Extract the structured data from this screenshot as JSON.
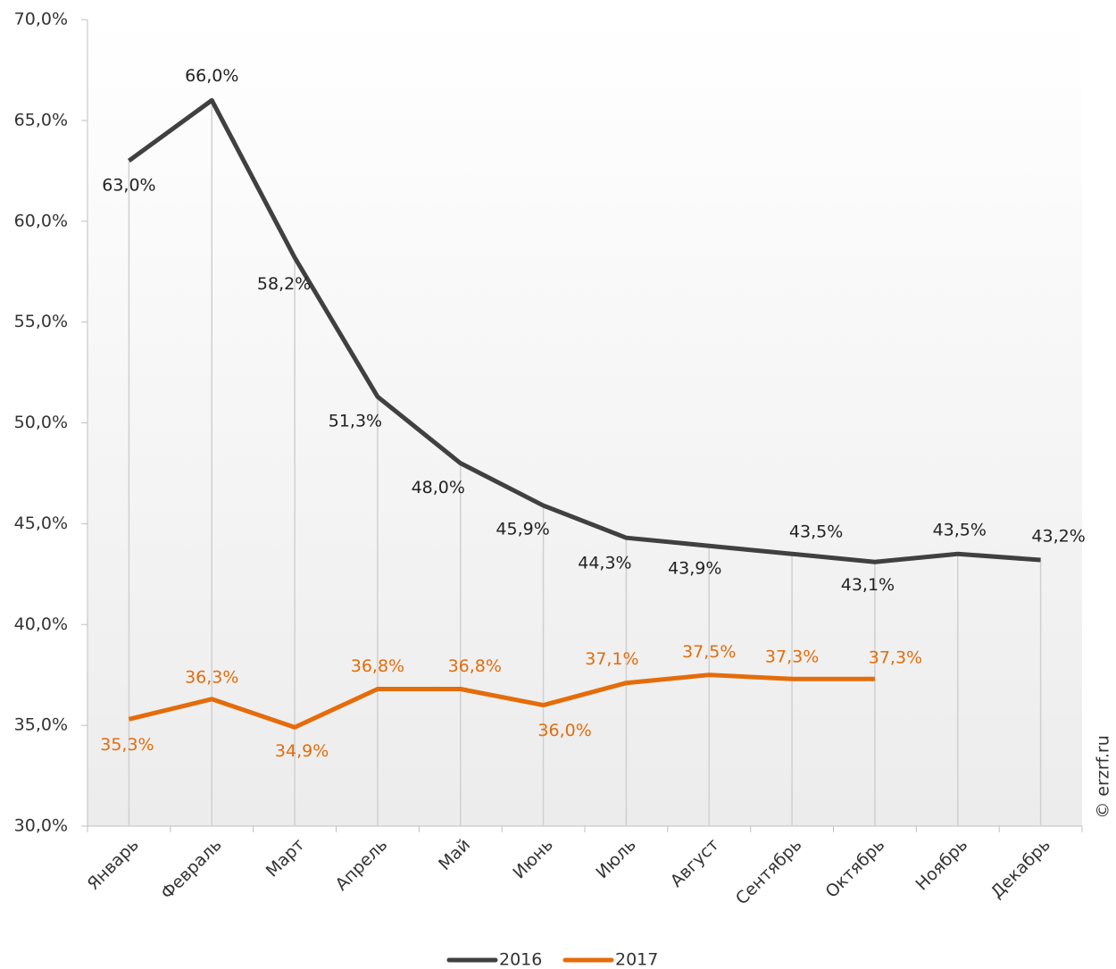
{
  "chart_data": {
    "type": "line",
    "categories": [
      "Январь",
      "Февраль",
      "Март",
      "Апрель",
      "Май",
      "Июнь",
      "Июль",
      "Август",
      "Сентябрь",
      "Октябрь",
      "Ноябрь",
      "Декабрь"
    ],
    "series": [
      {
        "name": "2016",
        "color": "#404040",
        "values": [
          63.0,
          66.0,
          58.2,
          51.3,
          48.0,
          45.9,
          44.3,
          43.9,
          43.5,
          43.1,
          43.5,
          43.2
        ],
        "value_labels": [
          "63,0%",
          "66,0%",
          "58,2%",
          "51,3%",
          "48,0%",
          "45,9%",
          "44,3%",
          "43,9%",
          "43,5%",
          "43,1%",
          "43,5%",
          "43,2%"
        ]
      },
      {
        "name": "2017",
        "color": "#e46c0a",
        "values": [
          35.3,
          36.3,
          34.9,
          36.8,
          36.8,
          36.0,
          37.1,
          37.5,
          37.3,
          37.3,
          null,
          null
        ],
        "value_labels": [
          "35,3%",
          "36,3%",
          "34,9%",
          "36,8%",
          "36,8%",
          "36,0%",
          "37,1%",
          "37,5%",
          "37,3%",
          "37,3%",
          null,
          null
        ]
      }
    ],
    "ylim": [
      30,
      70
    ],
    "yticks": [
      {
        "value": 30,
        "label": "30,0%"
      },
      {
        "value": 35,
        "label": "35,0%"
      },
      {
        "value": 40,
        "label": "40,0%"
      },
      {
        "value": 45,
        "label": "45,0%"
      },
      {
        "value": 50,
        "label": "50,0%"
      },
      {
        "value": 55,
        "label": "55,0%"
      },
      {
        "value": 60,
        "label": "60,0%"
      },
      {
        "value": 65,
        "label": "65,0%"
      },
      {
        "value": 70,
        "label": "70,0%"
      }
    ],
    "legend": "bottom",
    "credit": "© erzrf.ru"
  }
}
